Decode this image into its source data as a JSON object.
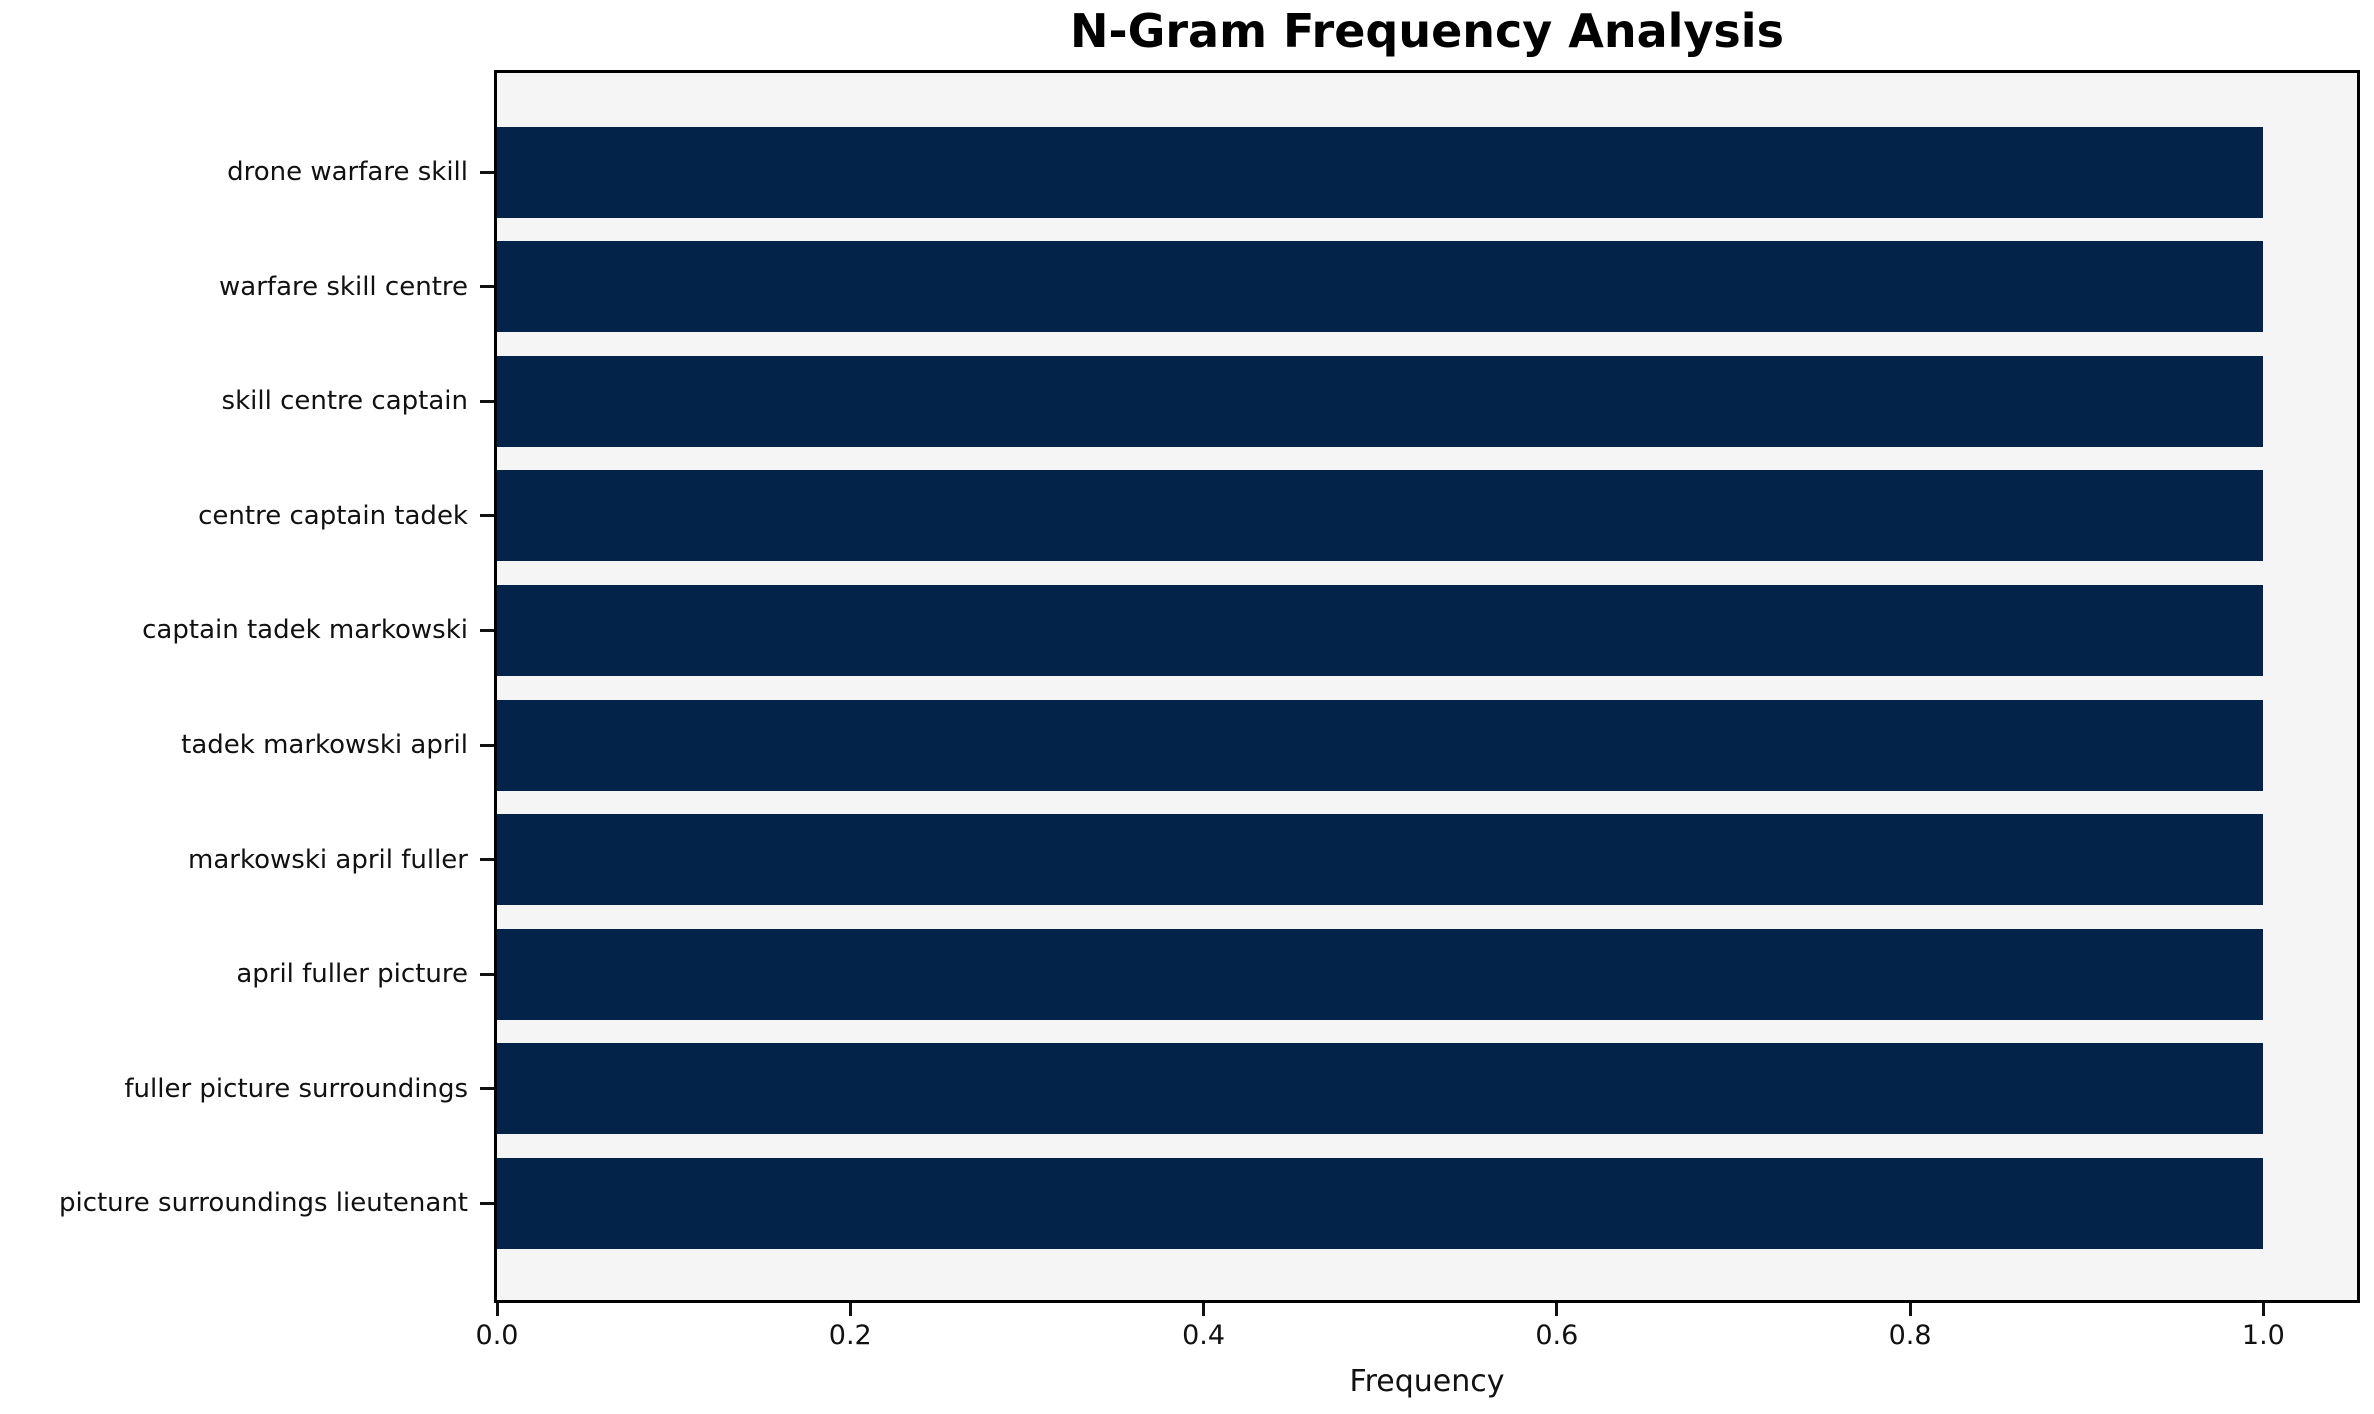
{
  "chart_data": {
    "type": "bar",
    "orientation": "horizontal",
    "title": "N-Gram Frequency Analysis",
    "xlabel": "Frequency",
    "ylabel": "",
    "categories": [
      "drone warfare skill",
      "warfare skill centre",
      "skill centre captain",
      "centre captain tadek",
      "captain tadek markowski",
      "tadek markowski april",
      "markowski april fuller",
      "april fuller picture",
      "fuller picture surroundings",
      "picture surroundings lieutenant"
    ],
    "values": [
      1.0,
      1.0,
      1.0,
      1.0,
      1.0,
      1.0,
      1.0,
      1.0,
      1.0,
      1.0
    ],
    "x_tick_labels": [
      "0.0",
      "0.2",
      "0.4",
      "0.6",
      "0.8",
      "1.0"
    ],
    "x_tick_values": [
      0.0,
      0.2,
      0.4,
      0.6,
      0.8,
      1.0
    ],
    "xlim": [
      0,
      1.053
    ],
    "grid": false,
    "legend": null,
    "colors": {
      "bar": "#032349",
      "plot_bg": "#f5f5f5",
      "figure_bg": "#ffffff",
      "axis": "#000000",
      "text": "#111111"
    }
  }
}
